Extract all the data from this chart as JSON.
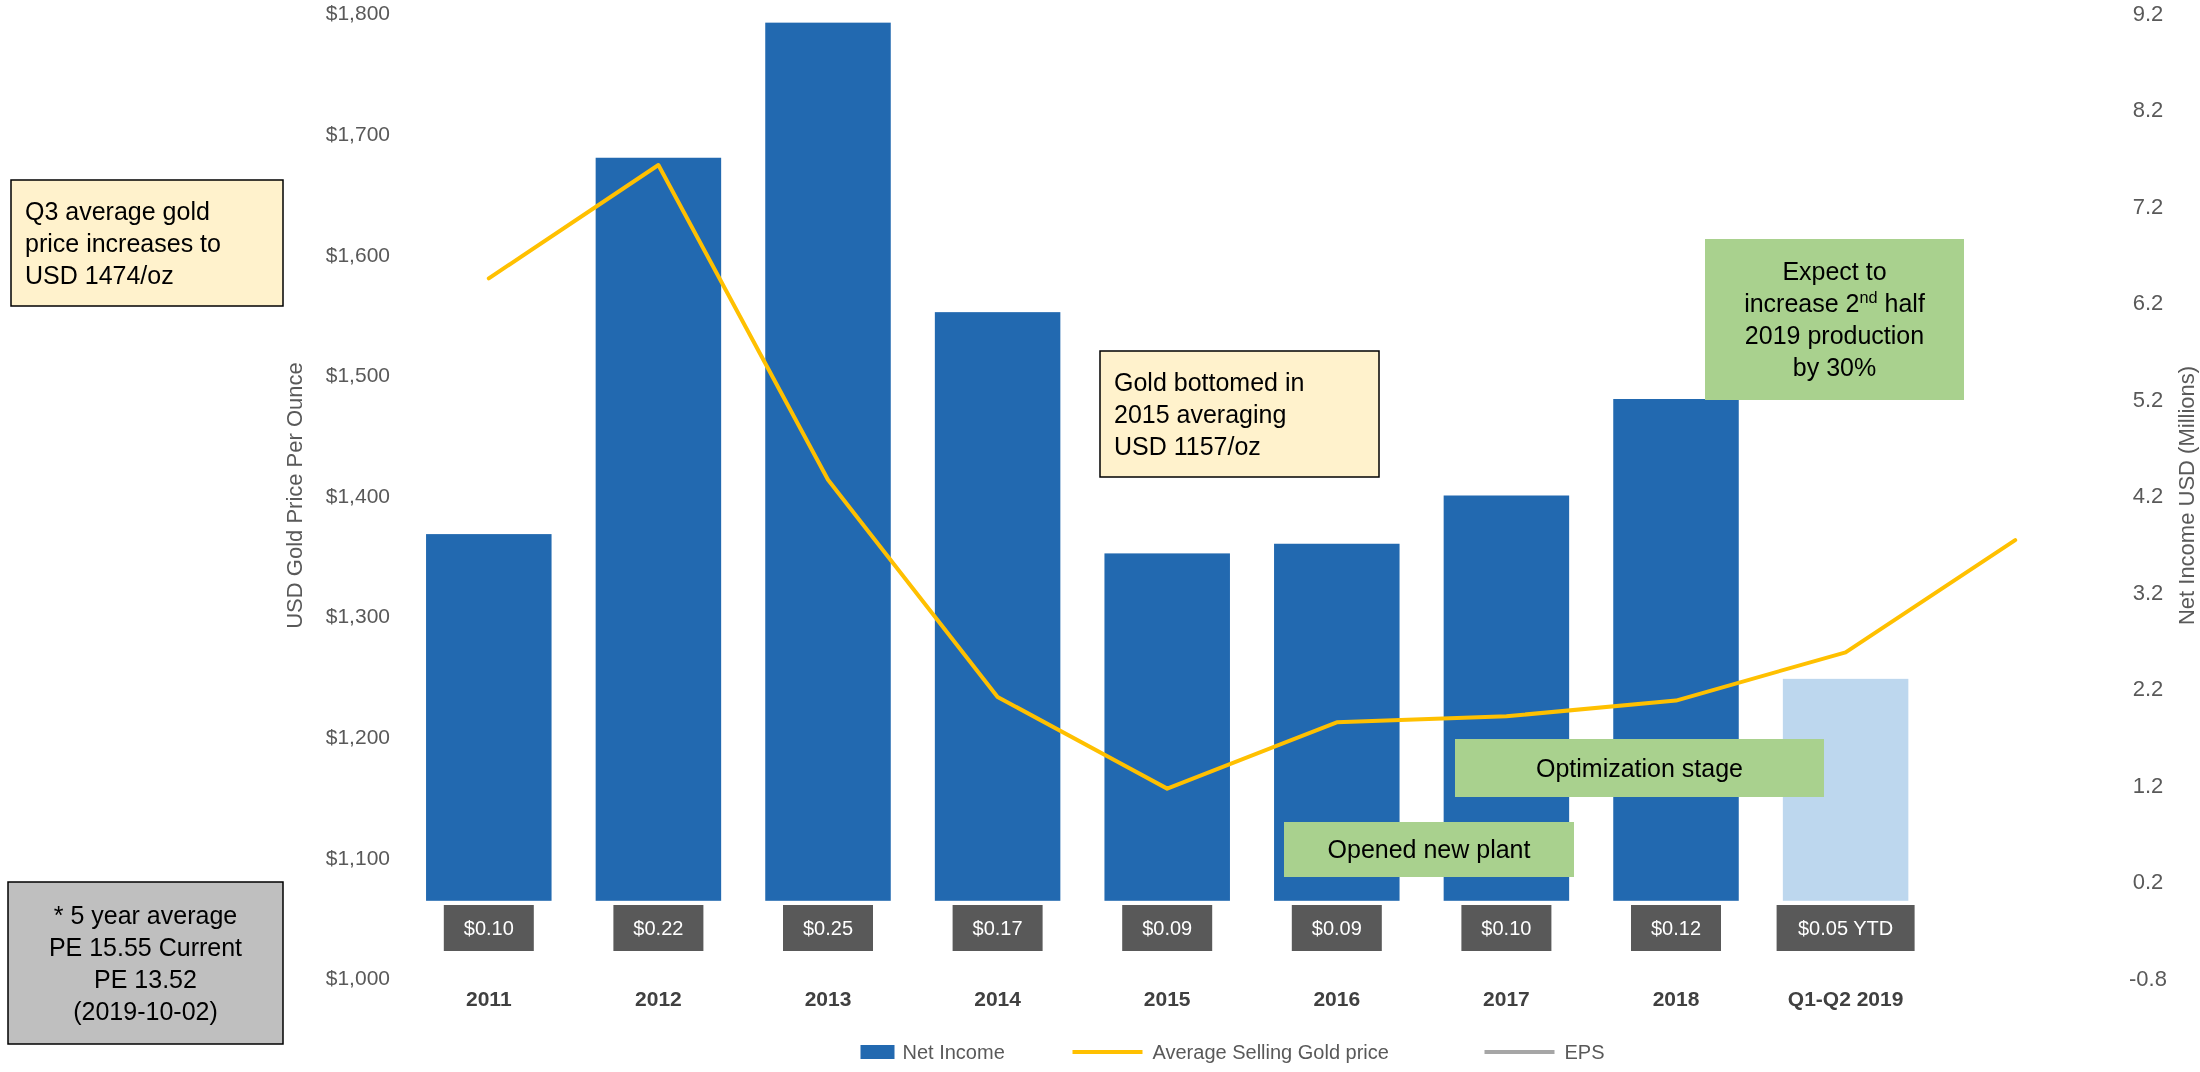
{
  "chart_data": {
    "type": "bar",
    "categories": [
      "2011",
      "2012",
      "2013",
      "2014",
      "2015",
      "2016",
      "2017",
      "2018",
      "Q1-Q2 2019",
      null
    ],
    "ylabel": "USD Gold Price Per Ounce",
    "y2label": "Net Income USD (Millions)",
    "ylim": [
      1000,
      1800
    ],
    "yticks": [
      {
        "value": 1000,
        "label": "$1,000"
      },
      {
        "value": 1100,
        "label": "$1,100"
      },
      {
        "value": 1200,
        "label": "$1,200"
      },
      {
        "value": 1300,
        "label": "$1,300"
      },
      {
        "value": 1400,
        "label": "$1,400"
      },
      {
        "value": 1500,
        "label": "$1,500"
      },
      {
        "value": 1600,
        "label": "$1,600"
      },
      {
        "value": 1700,
        "label": "$1,700"
      },
      {
        "value": 1800,
        "label": "$1,800"
      }
    ],
    "y2lim": [
      -0.8,
      9.2
    ],
    "y2ticks": [
      -0.8,
      0.2,
      1.2,
      2.2,
      3.2,
      4.2,
      5.2,
      6.2,
      7.2,
      8.2,
      9.2
    ],
    "series": [
      {
        "name": "Net Income",
        "axis": "y2",
        "color": "#2269b0",
        "colors": [
          "#2269b0",
          "#2269b0",
          "#2269b0",
          "#2269b0",
          "#2269b0",
          "#2269b0",
          "#2269b0",
          "#2269b0",
          "#bdd7ee",
          null
        ],
        "values": [
          3.8,
          7.7,
          9.1,
          6.1,
          3.6,
          3.7,
          4.2,
          5.2,
          2.3,
          null
        ]
      },
      {
        "name": "Average Selling Gold price",
        "type": "line",
        "color": "#ffc000",
        "values": [
          1580,
          1674,
          1413,
          1233,
          1157,
          1212,
          1217,
          1230,
          1270,
          1363
        ]
      },
      {
        "name": "EPS",
        "type": "line",
        "color": "#a6a6a6",
        "values": [
          null,
          null,
          null,
          null,
          null,
          null,
          null,
          null,
          null,
          null
        ],
        "value_labels": [
          "$0.10",
          "$0.22",
          "$0.25",
          "$0.17",
          "$0.09",
          "$0.09",
          "$0.10",
          "$0.12",
          "$0.05 YTD",
          null
        ]
      }
    ],
    "legend": "bottom",
    "annotations": [
      "Q3 average gold price increases to USD 1474/oz",
      "* 5 year average PE 15.55 Current PE 13.52 (2019-10-02)",
      "Gold bottomed in 2015 averaging USD 1157/oz",
      "Expect to increase 2$^{nd}$ half 2019 production by 30%",
      "Optimization stage",
      "Opened new plant"
    ]
  }
}
